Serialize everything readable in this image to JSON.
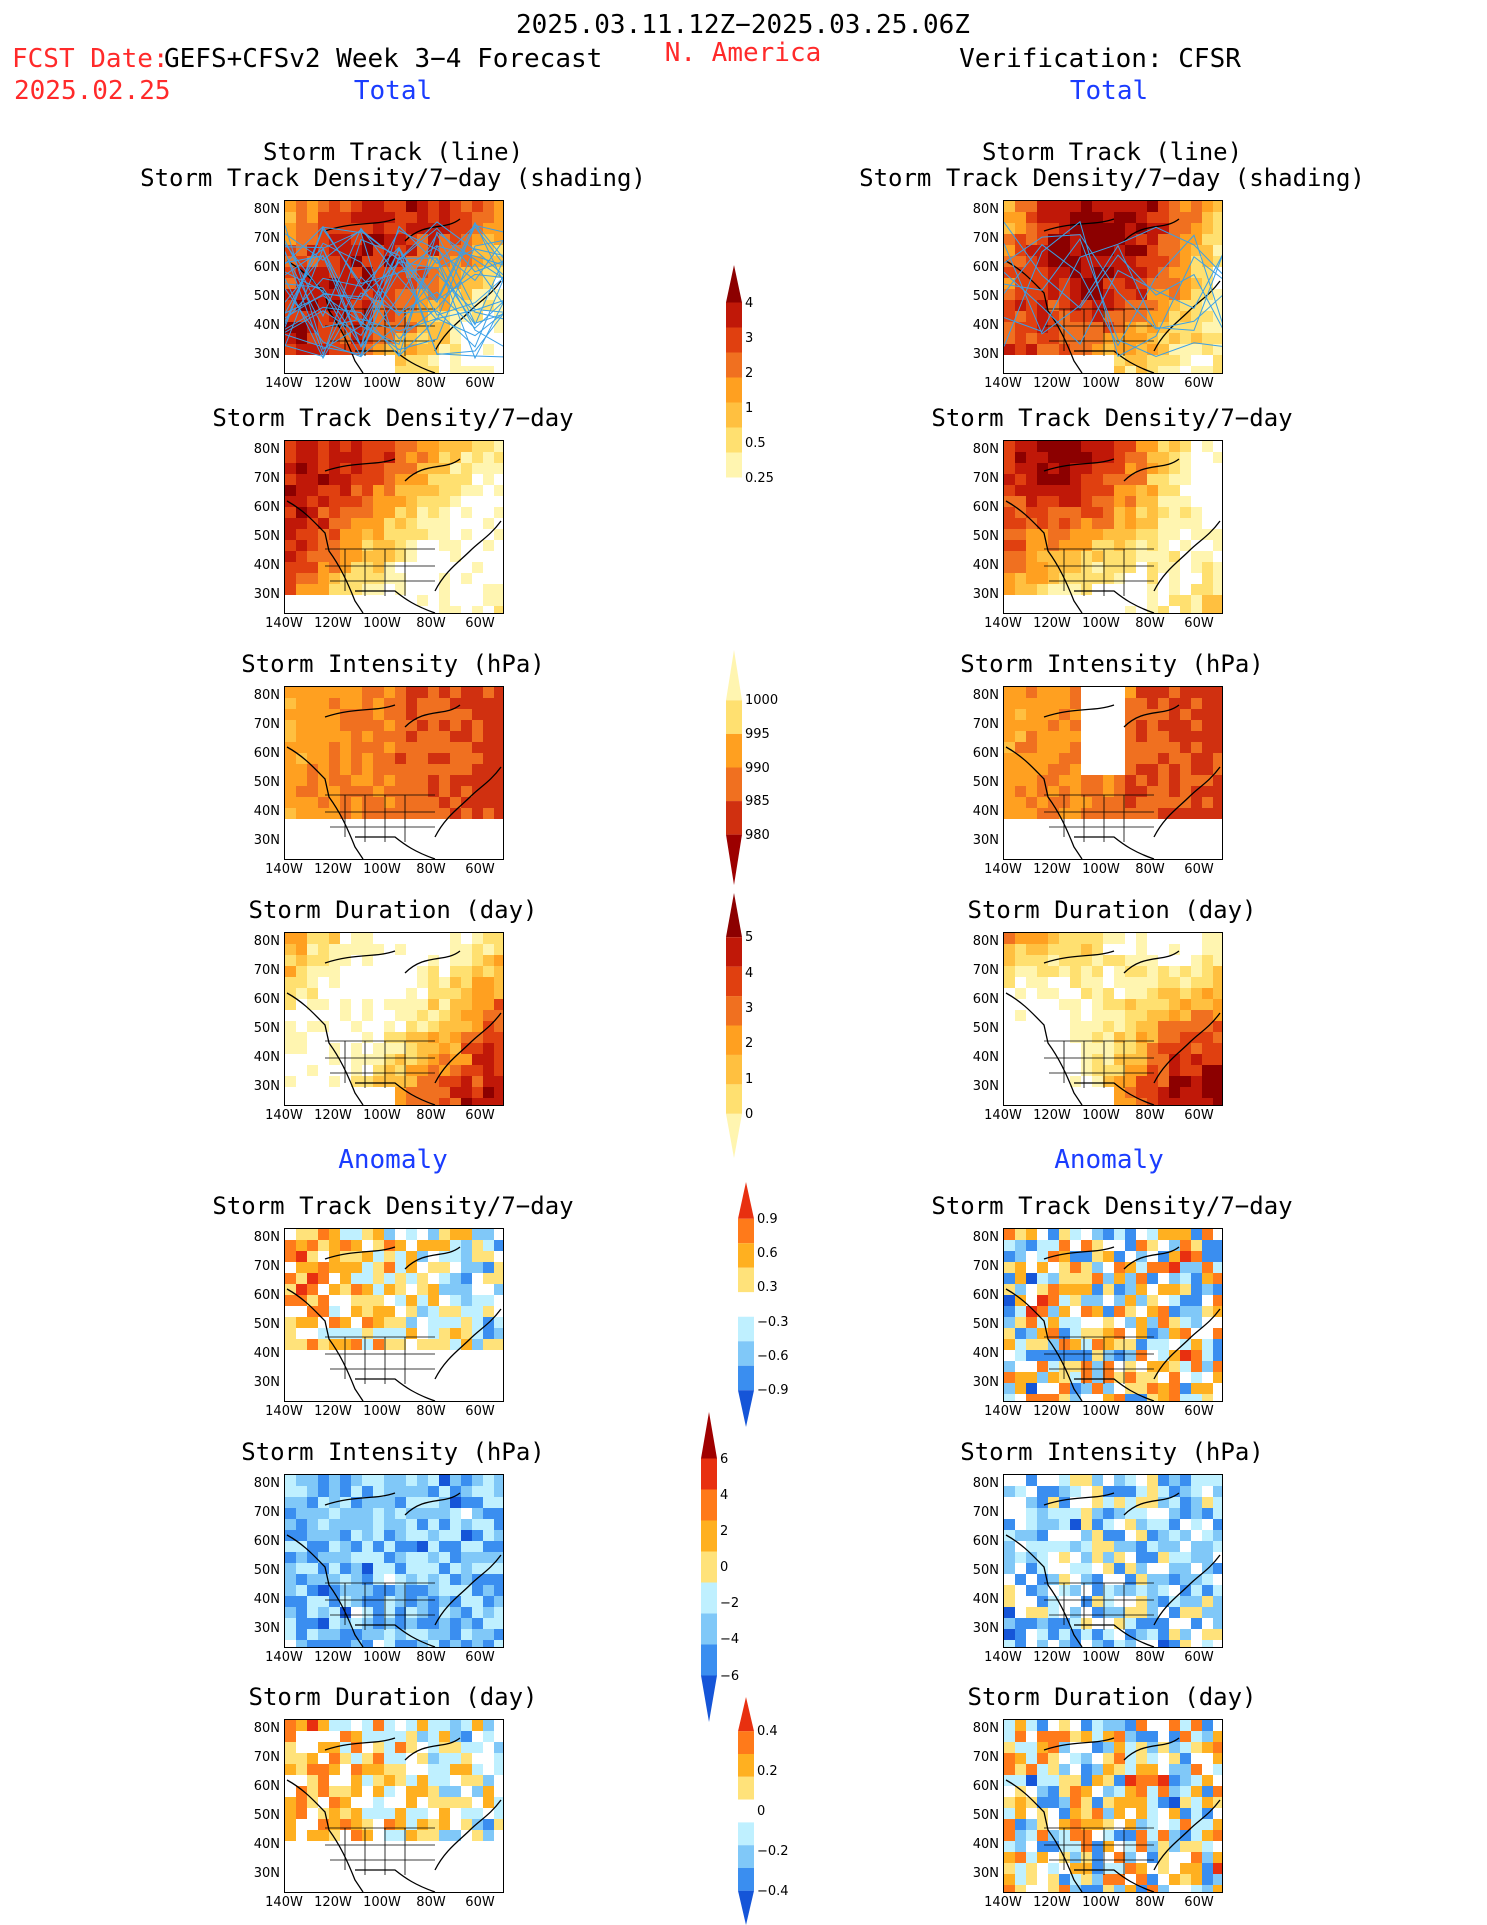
{
  "header": {
    "period": "2025.03.11.12Z−2025.03.25.06Z",
    "fcst_prefix": "FCST Date:",
    "model": "GEFS+CFSv2 Week 3−4 Forecast",
    "fcst_date": "2025.02.25",
    "region": "N. America",
    "verification": "Verification: CFSR"
  },
  "sections": {
    "total": "Total",
    "anomaly": "Anomaly"
  },
  "titles": {
    "track_line": "Storm Track (line)",
    "track_shading": "Storm Track Density/7−day (shading)",
    "density": "Storm Track Density/7−day",
    "intensity": "Storm Intensity (hPa)",
    "duration": "Storm Duration (day)"
  },
  "axes": {
    "lat_ticks": [
      "80N",
      "70N",
      "60N",
      "50N",
      "40N",
      "30N"
    ],
    "lon_ticks": [
      "140W",
      "120W",
      "100W",
      "80W",
      "60W"
    ]
  },
  "colorbars": [
    {
      "id": "density",
      "labels": [
        "4",
        "3",
        "2",
        "1",
        "0.5",
        "0.25"
      ]
    },
    {
      "id": "intensity",
      "labels": [
        "1000",
        "995",
        "990",
        "985",
        "980"
      ]
    },
    {
      "id": "duration",
      "labels": [
        "5",
        "4",
        "3",
        "2",
        "1",
        "0"
      ]
    },
    {
      "id": "density_anom",
      "labels": [
        "0.9",
        "0.6",
        "0.3",
        "−0.3",
        "−0.6",
        "−0.9"
      ]
    },
    {
      "id": "intensity_anom",
      "labels": [
        "6",
        "4",
        "2",
        "0",
        "−2",
        "−4",
        "−6"
      ]
    },
    {
      "id": "duration_anom",
      "labels": [
        "0.4",
        "0.2",
        "0",
        "−0.2",
        "−0.4"
      ]
    }
  ],
  "colors": {
    "header_red": "#ff2a2a",
    "section_blue": "#1a3cff",
    "track_line": "#3aa0e8",
    "warm": [
      "#fff5b0",
      "#ffe070",
      "#ffc040",
      "#ffa020",
      "#f07020",
      "#e04010",
      "#c01808",
      "#8c0000"
    ],
    "anom": [
      "#e83010",
      "#ff7a1a",
      "#ffb020",
      "#ffe27a",
      "#ffffff",
      "#bff0ff",
      "#80c8f8",
      "#3a8ef0",
      "#1555d8"
    ]
  }
}
